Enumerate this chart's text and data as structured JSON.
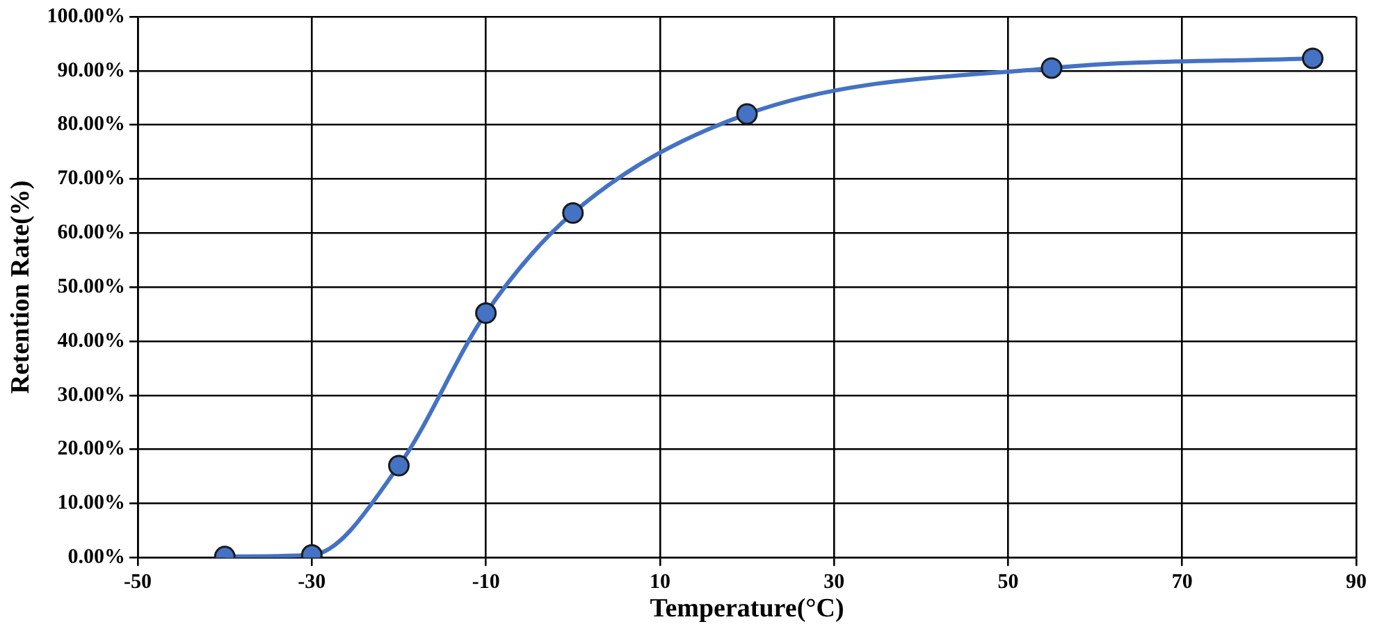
{
  "chart_data": {
    "type": "line",
    "xlabel": "Temperature(°C)",
    "ylabel": "Retention Rate(%)",
    "x": [
      -40,
      -30,
      -20,
      -10,
      0,
      20,
      55,
      85
    ],
    "series": [
      {
        "color": "#4472c4",
        "values": [
          0.2,
          0.5,
          17,
          45.2,
          63.7,
          82,
          90.5,
          92.3
        ]
      }
    ],
    "xlim": [
      -50,
      90
    ],
    "xticks": [
      -50,
      -30,
      -10,
      10,
      30,
      50,
      70,
      90
    ],
    "ylim": [
      0,
      100
    ],
    "yticks": [
      {
        "value": 0,
        "label": "0.00%"
      },
      {
        "value": 10,
        "label": "10.00%"
      },
      {
        "value": 20,
        "label": "20.00%"
      },
      {
        "value": 30,
        "label": "30.00%"
      },
      {
        "value": 40,
        "label": "40.00%"
      },
      {
        "value": 50,
        "label": "50.00%"
      },
      {
        "value": 60,
        "label": "60.00%"
      },
      {
        "value": 70,
        "label": "70.00%"
      },
      {
        "value": 80,
        "label": "80.00%"
      },
      {
        "value": 90,
        "label": "90.00%"
      },
      {
        "value": 100,
        "label": "100.00%"
      }
    ],
    "grid": true,
    "marker": "circle",
    "line_style": "solid",
    "legend": false
  }
}
